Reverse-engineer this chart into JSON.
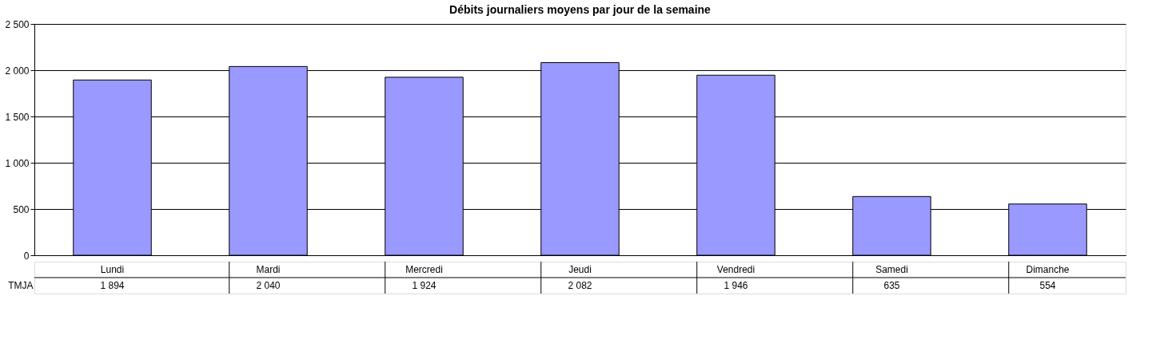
{
  "chart_data": {
    "type": "bar",
    "title": "Débits journaliers moyens par jour de la semaine",
    "categories": [
      "Lundi",
      "Mardi",
      "Mercredi",
      "Jeudi",
      "Vendredi",
      "Samedi",
      "Dimanche"
    ],
    "series": [
      {
        "name": "TMJA",
        "color": "#9999ff",
        "values": [
          1894,
          2040,
          1924,
          2082,
          1946,
          635,
          554
        ],
        "value_labels": [
          "1 894",
          "2 040",
          "1 924",
          "2 082",
          "1 946",
          "635",
          "554"
        ]
      }
    ],
    "ylim": [
      0,
      2500
    ],
    "yticks": [
      0,
      500,
      {
        "value": 1000,
        "label": "1 000"
      },
      {
        "value": 1500,
        "label": "1 500"
      },
      {
        "value": 2000,
        "label": "2 000"
      },
      {
        "value": 2500,
        "label": "2 500"
      }
    ],
    "grid": "y"
  }
}
